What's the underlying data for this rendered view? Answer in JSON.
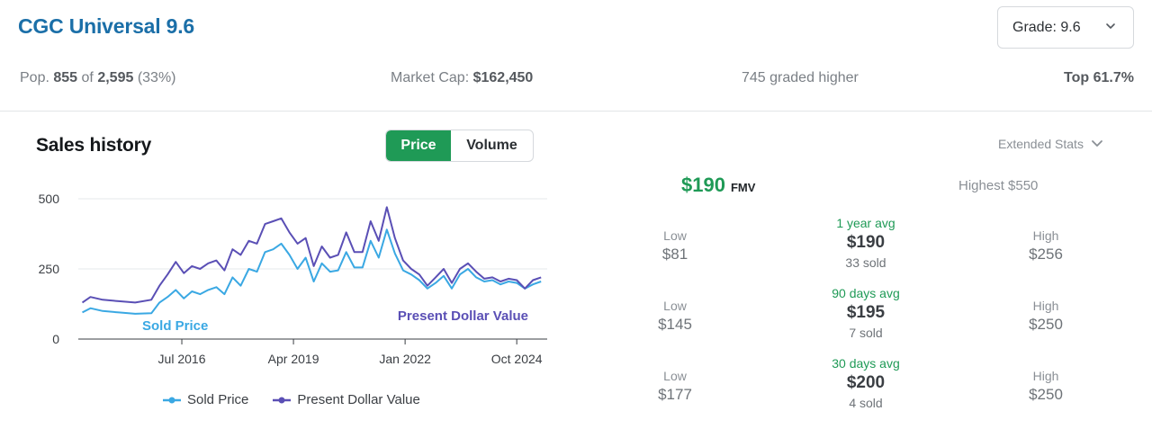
{
  "header": {
    "title": "CGC Universal 9.6",
    "grade_select": "Grade: 9.6"
  },
  "stats": {
    "pop_label": "Pop.",
    "pop_count": "855",
    "pop_of": "of",
    "pop_total": "2,595",
    "pop_pct": "(33%)",
    "market_cap_label": "Market Cap:",
    "market_cap_value": "$162,450",
    "graded_higher": "745 graded higher",
    "top_pct": "Top 61.7%"
  },
  "sales_history": {
    "title": "Sales history",
    "toggle": {
      "price": "Price",
      "volume": "Volume",
      "active": "Price"
    }
  },
  "chart_data": {
    "type": "line",
    "x_tick_labels": [
      "Jul 2016",
      "Apr 2019",
      "Jan 2022",
      "Oct 2024"
    ],
    "y_tick_labels": [
      "0",
      "250",
      "500"
    ],
    "ylim": [
      0,
      500
    ],
    "xlim": [
      2014.0,
      2025.55
    ],
    "grid": "horizontal",
    "legend_position": "bottom",
    "annotations": [
      "Sold Price",
      "Present Dollar Value"
    ],
    "colors": {
      "sold": "#3aa8e3",
      "pdv": "#5a4fb5"
    },
    "series": [
      {
        "name": "Sold Price",
        "x": [
          2014.1,
          2014.3,
          2014.6,
          2015.0,
          2015.4,
          2015.8,
          2016.0,
          2016.2,
          2016.4,
          2016.6,
          2016.8,
          2017.0,
          2017.2,
          2017.4,
          2017.6,
          2017.8,
          2018.0,
          2018.2,
          2018.4,
          2018.6,
          2018.8,
          2019.0,
          2019.2,
          2019.4,
          2019.6,
          2019.8,
          2020.0,
          2020.2,
          2020.4,
          2020.6,
          2020.8,
          2021.0,
          2021.2,
          2021.4,
          2021.6,
          2021.8,
          2022.0,
          2022.2,
          2022.4,
          2022.6,
          2022.8,
          2023.0,
          2023.2,
          2023.4,
          2023.6,
          2023.8,
          2024.0,
          2024.2,
          2024.4,
          2024.6,
          2024.8,
          2025.0,
          2025.2,
          2025.4
        ],
        "values": [
          95,
          110,
          100,
          95,
          90,
          92,
          130,
          150,
          175,
          145,
          170,
          160,
          175,
          185,
          160,
          220,
          190,
          250,
          240,
          310,
          320,
          340,
          300,
          250,
          290,
          205,
          270,
          240,
          245,
          310,
          255,
          255,
          350,
          290,
          390,
          305,
          245,
          230,
          210,
          180,
          200,
          225,
          180,
          230,
          250,
          220,
          205,
          210,
          195,
          205,
          200,
          180,
          195,
          205
        ]
      },
      {
        "name": "Present Dollar Value",
        "x": [
          2014.1,
          2014.3,
          2014.6,
          2015.0,
          2015.4,
          2015.8,
          2016.0,
          2016.2,
          2016.4,
          2016.6,
          2016.8,
          2017.0,
          2017.2,
          2017.4,
          2017.6,
          2017.8,
          2018.0,
          2018.2,
          2018.4,
          2018.6,
          2018.8,
          2019.0,
          2019.2,
          2019.4,
          2019.6,
          2019.8,
          2020.0,
          2020.2,
          2020.4,
          2020.6,
          2020.8,
          2021.0,
          2021.2,
          2021.4,
          2021.6,
          2021.8,
          2022.0,
          2022.2,
          2022.4,
          2022.6,
          2022.8,
          2023.0,
          2023.2,
          2023.4,
          2023.6,
          2023.8,
          2024.0,
          2024.2,
          2024.4,
          2024.6,
          2024.8,
          2025.0,
          2025.2,
          2025.4
        ],
        "values": [
          130,
          150,
          140,
          135,
          130,
          140,
          190,
          230,
          275,
          235,
          260,
          250,
          270,
          280,
          245,
          320,
          300,
          350,
          340,
          410,
          420,
          430,
          380,
          340,
          360,
          260,
          330,
          290,
          300,
          380,
          310,
          310,
          420,
          350,
          470,
          360,
          280,
          250,
          230,
          190,
          220,
          250,
          200,
          250,
          270,
          240,
          215,
          220,
          205,
          215,
          210,
          180,
          210,
          220
        ]
      }
    ]
  },
  "extended_stats": {
    "label": "Extended Stats",
    "fmv_value": "$190",
    "fmv_label": "FMV",
    "highest": "Highest $550",
    "rows": [
      {
        "low_label": "Low",
        "low_value": "$81",
        "avg_label": "1 year avg",
        "avg_value": "$190",
        "sold": "33 sold",
        "high_label": "High",
        "high_value": "$256"
      },
      {
        "low_label": "Low",
        "low_value": "$145",
        "avg_label": "90 days avg",
        "avg_value": "$195",
        "sold": "7 sold",
        "high_label": "High",
        "high_value": "$250"
      },
      {
        "low_label": "Low",
        "low_value": "$177",
        "avg_label": "30 days avg",
        "avg_value": "$200",
        "sold": "4 sold",
        "high_label": "High",
        "high_value": "$250"
      }
    ]
  }
}
